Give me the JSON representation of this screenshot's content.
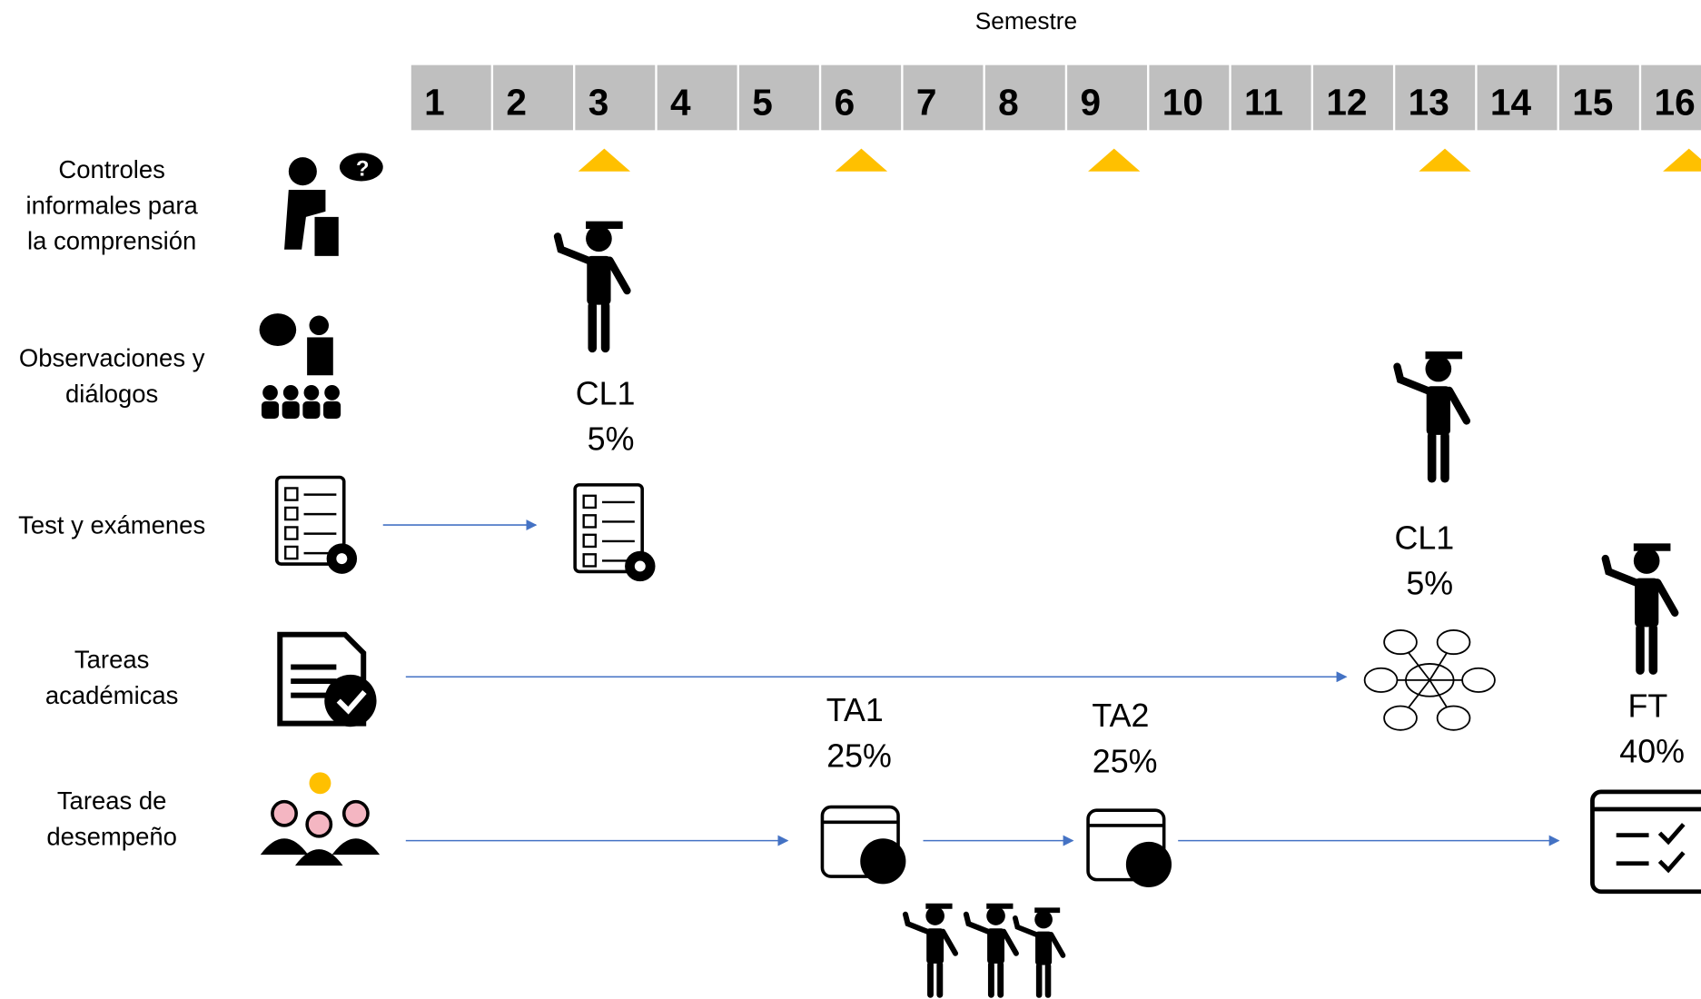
{
  "title": "Semestre",
  "weeks": [
    1,
    2,
    3,
    4,
    5,
    6,
    7,
    8,
    9,
    10,
    11,
    12,
    13,
    14,
    15,
    16
  ],
  "rows": [
    {
      "label": [
        "Controles",
        "informales para",
        "la comprensión"
      ]
    },
    {
      "label": [
        "Observaciones y",
        "diálogos"
      ]
    },
    {
      "label": [
        "Test y exámenes"
      ]
    },
    {
      "label": [
        "Tareas",
        "académicas"
      ]
    },
    {
      "label": [
        "Tareas de",
        "desempeño"
      ]
    }
  ],
  "events": [
    {
      "label": "CL1",
      "weight": "5%"
    },
    {
      "label": "CL1",
      "weight": "5%"
    },
    {
      "label": "TA1",
      "weight": "25%"
    },
    {
      "label": "TA2",
      "weight": "25%"
    },
    {
      "label": "FT",
      "weight": "40%"
    }
  ]
}
